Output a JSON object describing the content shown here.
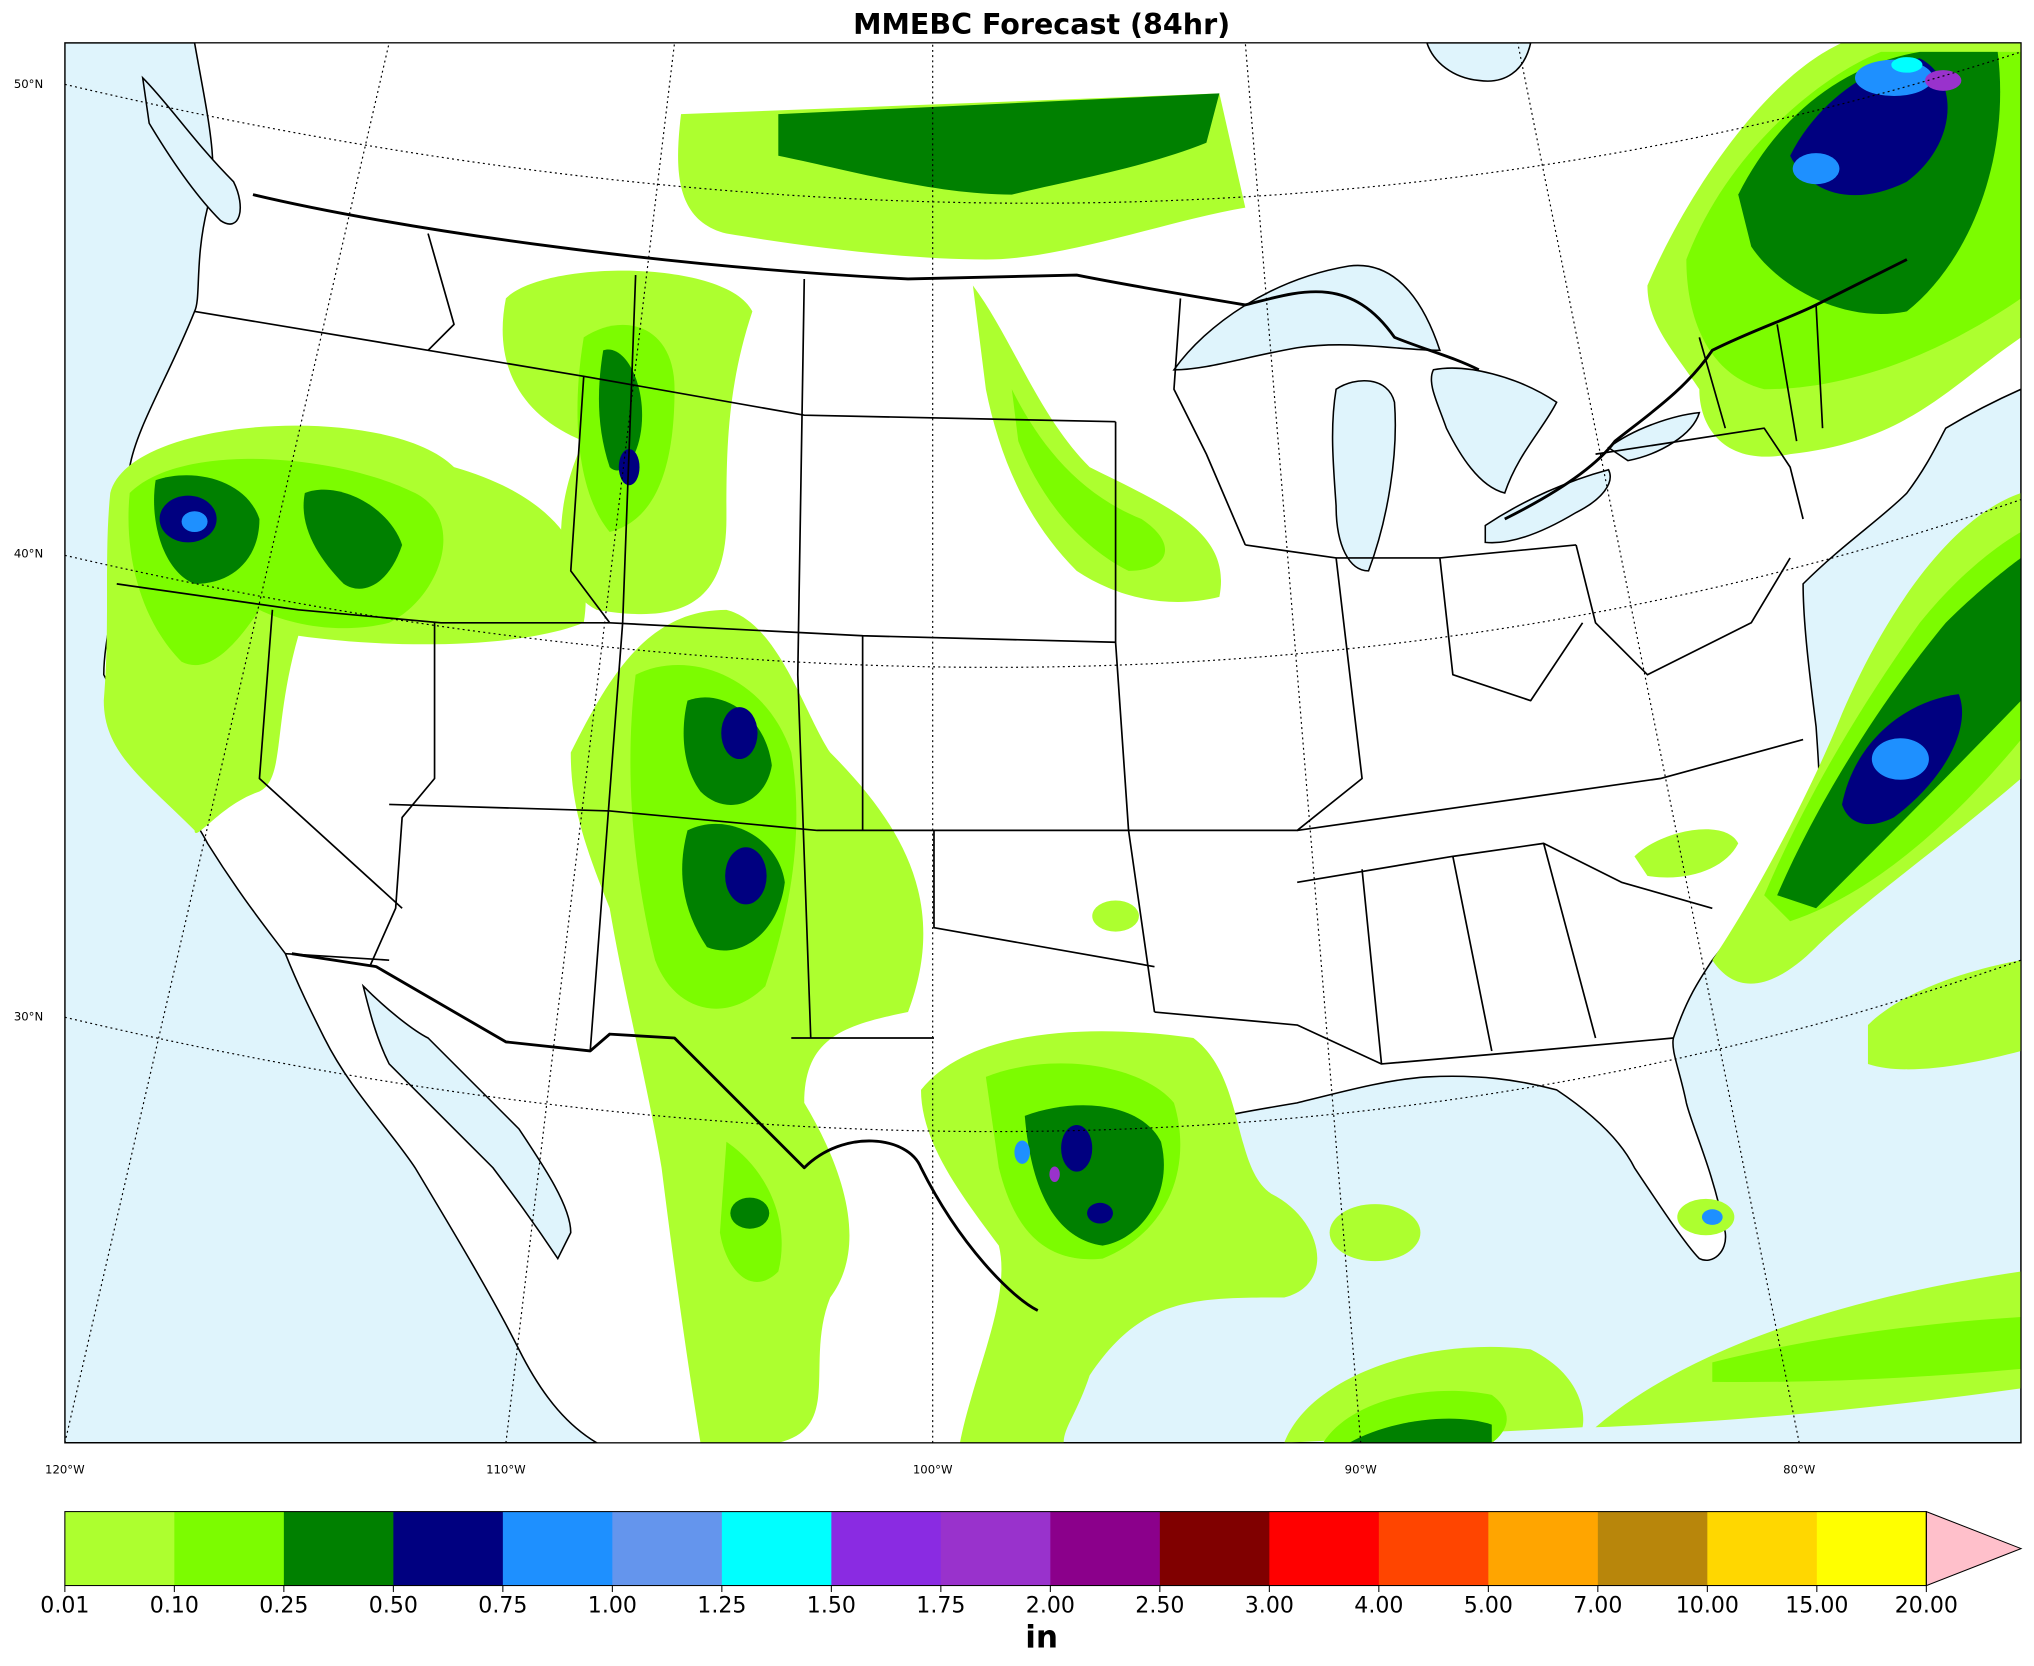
{
  "title": "MMEBC Forecast (84hr)",
  "map": {
    "lat_labels": [
      "50°N",
      "40°N",
      "30°N"
    ],
    "lon_labels": [
      "120°W",
      "110°W",
      "100°W",
      "90°W",
      "80°W"
    ]
  },
  "colorbar": {
    "levels": [
      "0.01",
      "0.10",
      "0.25",
      "0.50",
      "0.75",
      "1.00",
      "1.25",
      "1.50",
      "1.75",
      "2.00",
      "2.50",
      "3.00",
      "4.00",
      "5.00",
      "7.00",
      "10.00",
      "15.00",
      "20.00"
    ],
    "colors": [
      "#adff2f",
      "#7cfc00",
      "#008000",
      "#000080",
      "#1e90ff",
      "#6495ed",
      "#00ffff",
      "#8a2be2",
      "#9932cc",
      "#8b008b",
      "#800000",
      "#ff0000",
      "#ff4500",
      "#ffa500",
      "#b8860b",
      "#ffd700",
      "#ffff00"
    ],
    "extend_color": "#ffc0cb",
    "unit": "in"
  }
}
